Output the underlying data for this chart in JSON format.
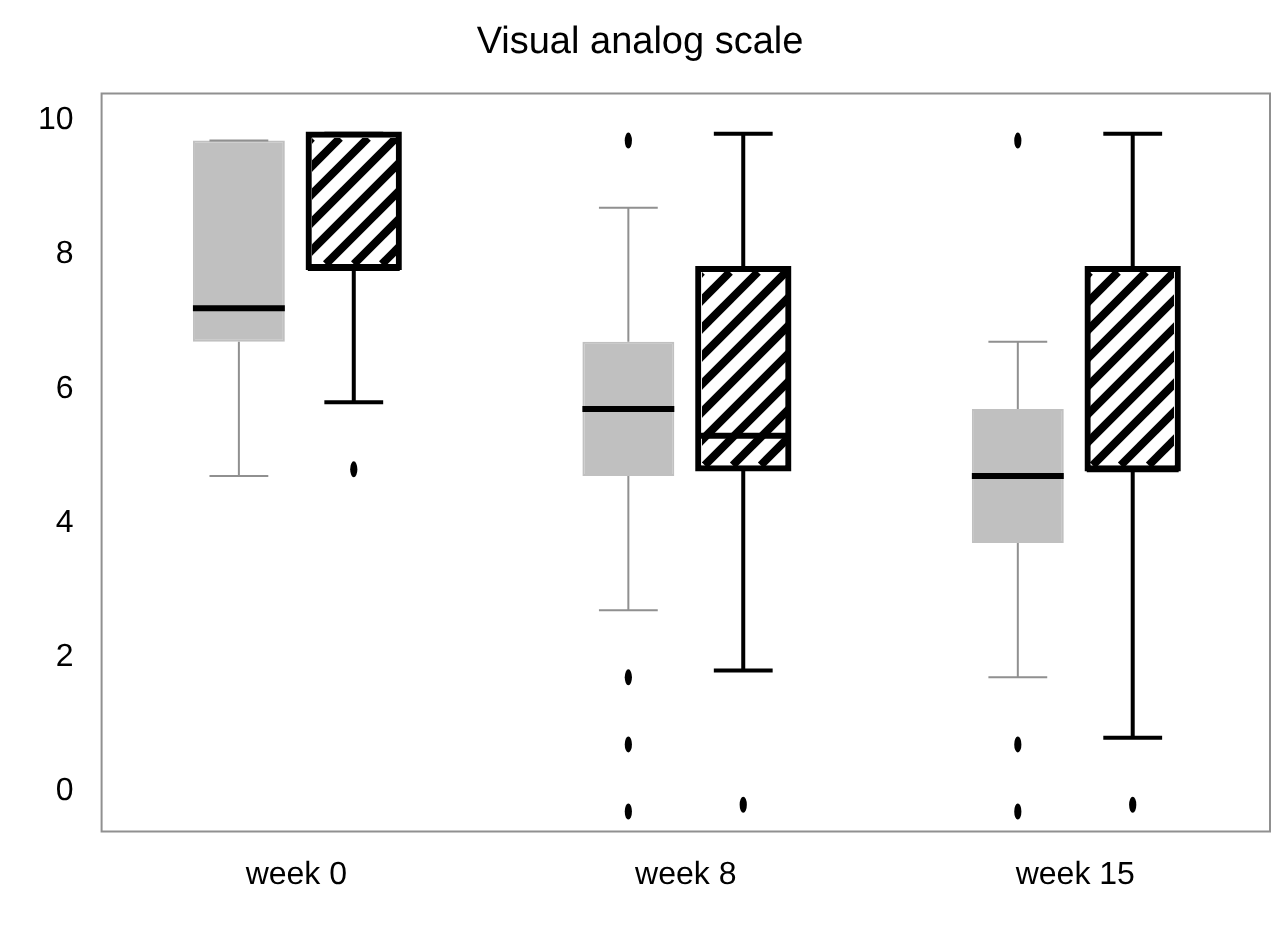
{
  "chart_data": {
    "type": "box",
    "title": "Visual analog scale",
    "categories": [
      "week 0",
      "week 8",
      "week 15"
    ],
    "series": [
      {
        "color": "#c0c0c0",
        "boxes": [
          {
            "low": 4.7,
            "q1": 6.7,
            "median": 7.2,
            "q3": 9.7,
            "high": 9.7
          },
          {
            "low": 2.7,
            "q1": 4.7,
            "median": 5.7,
            "q3": 6.7,
            "high": 8.7,
            "outliers": [
              9.7,
              1.7,
              0.7,
              -0.3
            ]
          },
          {
            "low": 1.7,
            "q1": 3.7,
            "median": 4.7,
            "q3": 5.7,
            "high": 6.7,
            "outliers": [
              9.7,
              0.7,
              -0.3
            ]
          }
        ]
      },
      {
        "color": "#000000",
        "boxes": [
          {
            "low": 5.8,
            "q1": 7.8,
            "median": 7.8,
            "q3": 9.8,
            "high": 9.8,
            "outliers": [
              4.8
            ]
          },
          {
            "low": 1.8,
            "q1": 4.8,
            "median": 5.3,
            "q3": 7.8,
            "high": 9.8,
            "outliers": [
              -0.2
            ]
          },
          {
            "low": 0.8,
            "q1": 4.8,
            "median": 4.8,
            "q3": 7.8,
            "high": 9.8,
            "outliers": [
              -0.2
            ]
          }
        ]
      }
    ],
    "ylim": [
      -0.6,
      10.4
    ],
    "yticks": [
      0,
      2,
      4,
      6,
      8,
      10
    ],
    "grid": false,
    "legend": false
  }
}
